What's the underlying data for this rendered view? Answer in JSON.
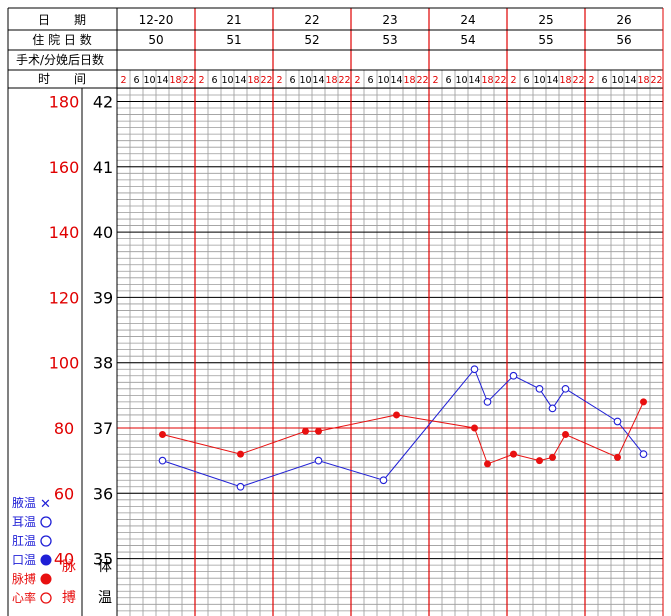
{
  "header": {
    "date_label": "日　　期",
    "hospital_days_label": "住 院 日 数",
    "post_op_label": "手术/分娩后日数",
    "time_label": "时　　间",
    "dates": [
      "12-20",
      "21",
      "22",
      "23",
      "24",
      "25",
      "26"
    ],
    "hospital_days": [
      "50",
      "51",
      "52",
      "53",
      "54",
      "55",
      "56"
    ],
    "times": [
      "2",
      "6",
      "10",
      "14",
      "18",
      "22"
    ]
  },
  "legend": {
    "axillary": "腋温",
    "ear": "耳温",
    "rectal": "肛温",
    "oral": "口温",
    "pulse": "脉搏",
    "heart_rate": "心率",
    "pulse_col_label_1": "脉",
    "pulse_col_label_2": "搏",
    "temp_col_label": "体",
    "temp_col_label_2": "温"
  },
  "colors": {
    "temperature": "#1f1fd6",
    "pulse": "#e81010",
    "grid_red": "#e00000",
    "grid_gray": "#9a9a9a"
  },
  "chart_data": {
    "type": "line",
    "x_unit": "4-hour slots, days 12-20 through 26",
    "pulse_axis": {
      "ticks": [
        180,
        160,
        140,
        120,
        100,
        80,
        60,
        40
      ]
    },
    "temperature_axis": {
      "ticks": [
        42,
        41,
        40,
        39,
        38,
        37,
        36,
        35
      ],
      "ylim": [
        34,
        42
      ]
    },
    "series": [
      {
        "marker": "open-circle",
        "axis": "temperature",
        "points": [
          {
            "day": "12-20",
            "time": 14,
            "value": 36.5
          },
          {
            "day": "21",
            "time": 14,
            "value": 36.1
          },
          {
            "day": "22",
            "time": 14,
            "value": 36.5
          },
          {
            "day": "23",
            "time": 10,
            "value": 36.2
          },
          {
            "day": "24",
            "time": 14,
            "value": 37.9
          },
          {
            "day": "24",
            "time": 18,
            "value": 37.4
          },
          {
            "day": "25",
            "time": 2,
            "value": 37.8
          },
          {
            "day": "25",
            "time": 10,
            "value": 37.6
          },
          {
            "day": "25",
            "time": 14,
            "value": 37.3
          },
          {
            "day": "25",
            "time": 18,
            "value": 37.6
          },
          {
            "day": "26",
            "time": 10,
            "value": 37.1
          },
          {
            "day": "26",
            "time": 18,
            "value": 36.6
          }
        ]
      },
      {
        "marker": "filled-circle",
        "axis": "pulse",
        "points": [
          {
            "day": "12-20",
            "time": 14,
            "value": 78
          },
          {
            "day": "21",
            "time": 14,
            "value": 72
          },
          {
            "day": "22",
            "time": 10,
            "value": 79
          },
          {
            "day": "22",
            "time": 14,
            "value": 79
          },
          {
            "day": "23",
            "time": 14,
            "value": 84
          },
          {
            "day": "24",
            "time": 14,
            "value": 80
          },
          {
            "day": "24",
            "time": 18,
            "value": 69
          },
          {
            "day": "25",
            "time": 2,
            "value": 72
          },
          {
            "day": "25",
            "time": 10,
            "value": 70
          },
          {
            "day": "25",
            "time": 14,
            "value": 71
          },
          {
            "day": "25",
            "time": 18,
            "value": 78
          },
          {
            "day": "26",
            "time": 10,
            "value": 71
          },
          {
            "day": "26",
            "time": 18,
            "value": 88
          }
        ]
      }
    ]
  }
}
